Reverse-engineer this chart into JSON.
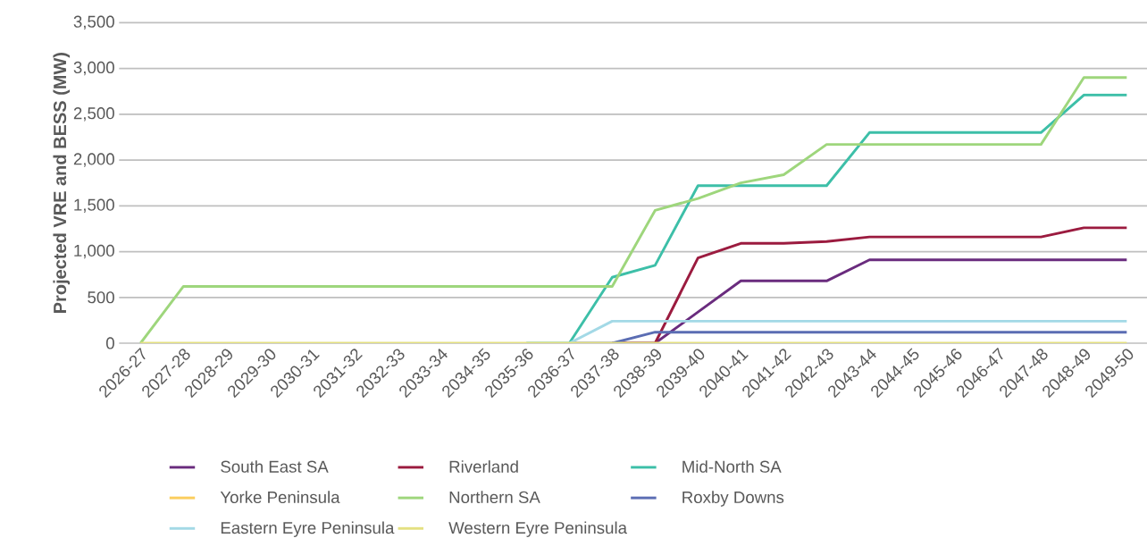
{
  "chart_data": {
    "type": "line",
    "ylabel": "Projected VRE and BESS (MW)",
    "categories": [
      "2026-27",
      "2027-28",
      "2028-29",
      "2029-30",
      "2030-31",
      "2031-32",
      "2032-33",
      "2033-34",
      "2034-35",
      "2035-36",
      "2036-37",
      "2037-38",
      "2038-39",
      "2039-40",
      "2040-41",
      "2041-42",
      "2042-43",
      "2043-44",
      "2044-45",
      "2045-46",
      "2046-47",
      "2047-48",
      "2048-49",
      "2049-50"
    ],
    "series": [
      {
        "name": "South East SA",
        "color": "#6a2c7e",
        "values": [
          null,
          null,
          null,
          null,
          null,
          null,
          null,
          null,
          null,
          null,
          null,
          0,
          0,
          340,
          680,
          680,
          680,
          910,
          910,
          910,
          910,
          910,
          910,
          910
        ]
      },
      {
        "name": "Riverland",
        "color": "#9b1b3f",
        "values": [
          null,
          null,
          null,
          null,
          null,
          null,
          null,
          null,
          null,
          null,
          null,
          0,
          0,
          930,
          1090,
          1090,
          1110,
          1160,
          1160,
          1160,
          1160,
          1160,
          1260,
          1260
        ]
      },
      {
        "name": "Mid-North SA",
        "color": "#3dbfa8",
        "values": [
          null,
          null,
          null,
          null,
          null,
          null,
          null,
          null,
          null,
          0,
          0,
          720,
          850,
          1720,
          1720,
          1720,
          1720,
          2300,
          2300,
          2300,
          2300,
          2300,
          2710,
          2710
        ]
      },
      {
        "name": "Yorke Peninsula",
        "color": "#fbcd5d",
        "values": [
          null,
          null,
          null,
          null,
          null,
          null,
          null,
          null,
          null,
          null,
          null,
          null,
          null,
          null,
          null,
          null,
          null,
          null,
          null,
          null,
          null,
          null,
          null,
          null
        ]
      },
      {
        "name": "Northern SA",
        "color": "#9ed67c",
        "values": [
          0,
          620,
          620,
          620,
          620,
          620,
          620,
          620,
          620,
          620,
          620,
          620,
          1450,
          1580,
          1750,
          1840,
          2170,
          2170,
          2170,
          2170,
          2170,
          2170,
          2900,
          2900
        ]
      },
      {
        "name": "Roxby Downs",
        "color": "#5b6db3",
        "values": [
          null,
          null,
          null,
          null,
          null,
          null,
          null,
          null,
          null,
          null,
          0,
          0,
          120,
          120,
          120,
          120,
          120,
          120,
          120,
          120,
          120,
          120,
          120,
          120
        ]
      },
      {
        "name": "Eastern Eyre Peninsula",
        "color": "#a3d9e6",
        "values": [
          null,
          null,
          null,
          null,
          null,
          null,
          null,
          null,
          null,
          0,
          0,
          240,
          240,
          240,
          240,
          240,
          240,
          240,
          240,
          240,
          240,
          240,
          240,
          240
        ]
      },
      {
        "name": "Western Eyre Peninsula",
        "color": "#e4e081",
        "values": [
          0,
          0,
          0,
          0,
          0,
          0,
          0,
          0,
          0,
          0,
          0,
          0,
          0,
          0,
          0,
          0,
          0,
          0,
          0,
          0,
          0,
          0,
          0,
          0
        ]
      }
    ],
    "ylim": [
      0,
      3500
    ],
    "yticks": [
      0,
      {
        "value": 500,
        "label": "500"
      },
      {
        "value": 1000,
        "label": "1,000"
      },
      {
        "value": 1500,
        "label": "1,500"
      },
      {
        "value": 2000,
        "label": "2,000"
      },
      {
        "value": 2500,
        "label": "2,500"
      },
      {
        "value": 3000,
        "label": "3,000"
      },
      {
        "value": 3500,
        "label": "3,500"
      }
    ],
    "grid": "y",
    "legend": "bottom",
    "marker": "none",
    "line_style": "solid"
  }
}
